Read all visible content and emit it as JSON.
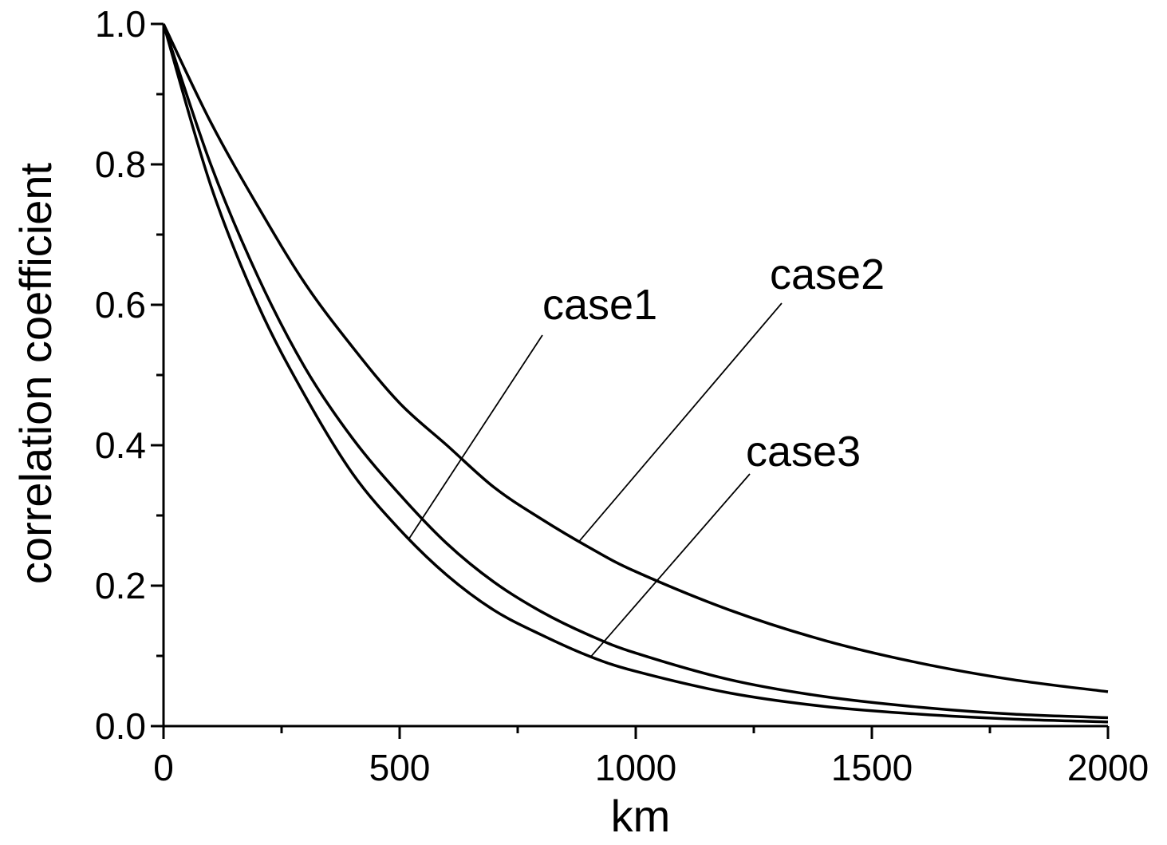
{
  "chart_data": {
    "type": "line",
    "xlabel": "km",
    "ylabel": "correlation coefficient",
    "xlim": [
      0,
      2000
    ],
    "ylim": [
      0,
      1.0
    ],
    "x_ticks": [
      0,
      500,
      1000,
      1500,
      2000
    ],
    "x_tick_labels": [
      "0",
      "500",
      "1000",
      "1500",
      "2000"
    ],
    "y_ticks": [
      0,
      0.2,
      0.4,
      0.6,
      0.8,
      1.0
    ],
    "y_tick_labels": [
      "0.0",
      "0.2",
      "0.4",
      "0.6",
      "0.8",
      "1.0"
    ],
    "grid": false,
    "series": [
      {
        "name": "case1",
        "x": [
          0,
          100,
          200,
          300,
          400,
          500,
          600,
          700,
          800,
          900,
          1000,
          1200,
          1400,
          1600,
          1800,
          2000
        ],
        "y": [
          1.0,
          0.77,
          0.6,
          0.47,
          0.36,
          0.28,
          0.215,
          0.165,
          0.13,
          0.1,
          0.078,
          0.047,
          0.028,
          0.017,
          0.01,
          0.006
        ]
      },
      {
        "name": "case2",
        "x": [
          0,
          100,
          200,
          300,
          400,
          500,
          600,
          700,
          800,
          900,
          1000,
          1200,
          1400,
          1600,
          1800,
          2000
        ],
        "y": [
          1.0,
          0.86,
          0.74,
          0.63,
          0.54,
          0.46,
          0.4,
          0.34,
          0.295,
          0.255,
          0.22,
          0.165,
          0.122,
          0.09,
          0.066,
          0.049
        ]
      },
      {
        "name": "case3",
        "x": [
          0,
          100,
          200,
          300,
          400,
          500,
          600,
          700,
          800,
          900,
          1000,
          1200,
          1400,
          1600,
          1800,
          2000
        ],
        "y": [
          1.0,
          0.8,
          0.64,
          0.51,
          0.41,
          0.33,
          0.26,
          0.205,
          0.163,
          0.13,
          0.104,
          0.066,
          0.042,
          0.027,
          0.017,
          0.012
        ]
      }
    ],
    "annotations": [
      {
        "text": "case1",
        "target_series": "case1",
        "point_x": 520
      },
      {
        "text": "case2",
        "target_series": "case2",
        "point_x": 880
      },
      {
        "text": "case3",
        "target_series": "case1",
        "point_x": 905
      }
    ]
  }
}
